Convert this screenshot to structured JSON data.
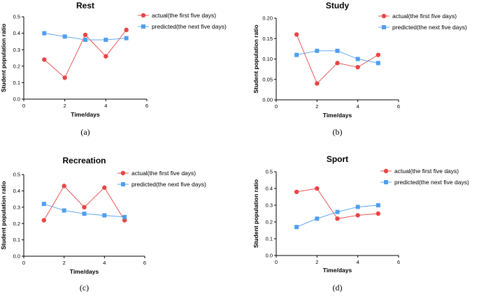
{
  "chart_data": [
    {
      "type": "line",
      "title": "Rest",
      "xlabel": "Time/days",
      "ylabel": "Student population ratio",
      "xlim": [
        0,
        6
      ],
      "ylim": [
        0,
        0.5
      ],
      "xticks": [
        "0",
        "2",
        "4",
        "6"
      ],
      "yticks": [
        "0.0",
        "0.1",
        "0.2",
        "0.3",
        "0.4",
        "0.5"
      ],
      "caption": "(a)",
      "series": [
        {
          "name": "actual(the first five days)",
          "color": "#e84545",
          "marker": "circle",
          "x": [
            1,
            2,
            3,
            4,
            5
          ],
          "values": [
            0.24,
            0.13,
            0.39,
            0.26,
            0.42
          ]
        },
        {
          "name": "predicted(the next five days)",
          "color": "#4f9ef0",
          "marker": "square",
          "x": [
            1,
            2,
            3,
            4,
            5
          ],
          "values": [
            0.4,
            0.38,
            0.36,
            0.36,
            0.37
          ]
        }
      ]
    },
    {
      "type": "line",
      "title": "Study",
      "xlabel": "Time/days",
      "ylabel": "Student population ratio",
      "xlim": [
        0,
        6
      ],
      "ylim": [
        0,
        0.2
      ],
      "xticks": [
        "0",
        "2",
        "4",
        "6"
      ],
      "yticks": [
        "0.00",
        "0.05",
        "0.10",
        "0.15",
        "0.20"
      ],
      "caption": "(b)",
      "series": [
        {
          "name": "actual(the first five days)",
          "color": "#e84545",
          "marker": "circle",
          "x": [
            1,
            2,
            3,
            4,
            5
          ],
          "values": [
            0.16,
            0.04,
            0.09,
            0.08,
            0.11
          ]
        },
        {
          "name": "predicted(the next five days)",
          "color": "#4f9ef0",
          "marker": "square",
          "x": [
            1,
            2,
            3,
            4,
            5
          ],
          "values": [
            0.11,
            0.12,
            0.12,
            0.1,
            0.09
          ]
        }
      ]
    },
    {
      "type": "line",
      "title": "Recreation",
      "xlabel": "Time/days",
      "ylabel": "Student population ratio",
      "xlim": [
        0,
        6
      ],
      "ylim": [
        0,
        0.5
      ],
      "xticks": [
        "0",
        "2",
        "4",
        "6"
      ],
      "yticks": [
        "0.0",
        "0.1",
        "0.2",
        "0.3",
        "0.4",
        "0.5"
      ],
      "caption": "(c)",
      "series": [
        {
          "name": "actual(the first five days)",
          "color": "#e84545",
          "marker": "circle",
          "x": [
            1,
            2,
            3,
            4,
            5
          ],
          "values": [
            0.22,
            0.43,
            0.3,
            0.42,
            0.22
          ]
        },
        {
          "name": "predicted(the next five days)",
          "color": "#4f9ef0",
          "marker": "square",
          "x": [
            1,
            2,
            3,
            4,
            5
          ],
          "values": [
            0.32,
            0.28,
            0.26,
            0.25,
            0.24
          ]
        }
      ]
    },
    {
      "type": "line",
      "title": "Sport",
      "xlabel": "Time/days",
      "ylabel": "Student population ratio",
      "xlim": [
        0,
        6
      ],
      "ylim": [
        0,
        0.5
      ],
      "xticks": [
        "0",
        "2",
        "4",
        "6"
      ],
      "yticks": [
        "0.0",
        "0.1",
        "0.2",
        "0.3",
        "0.4",
        "0.5"
      ],
      "caption": "(d)",
      "series": [
        {
          "name": "actual(the first five days)",
          "color": "#e84545",
          "marker": "circle",
          "x": [
            1,
            2,
            3,
            4,
            5
          ],
          "values": [
            0.38,
            0.4,
            0.22,
            0.24,
            0.25
          ]
        },
        {
          "name": "predicted(the next five days)",
          "color": "#4f9ef0",
          "marker": "square",
          "x": [
            1,
            2,
            3,
            4,
            5
          ],
          "values": [
            0.17,
            0.22,
            0.26,
            0.29,
            0.3
          ]
        }
      ]
    }
  ]
}
